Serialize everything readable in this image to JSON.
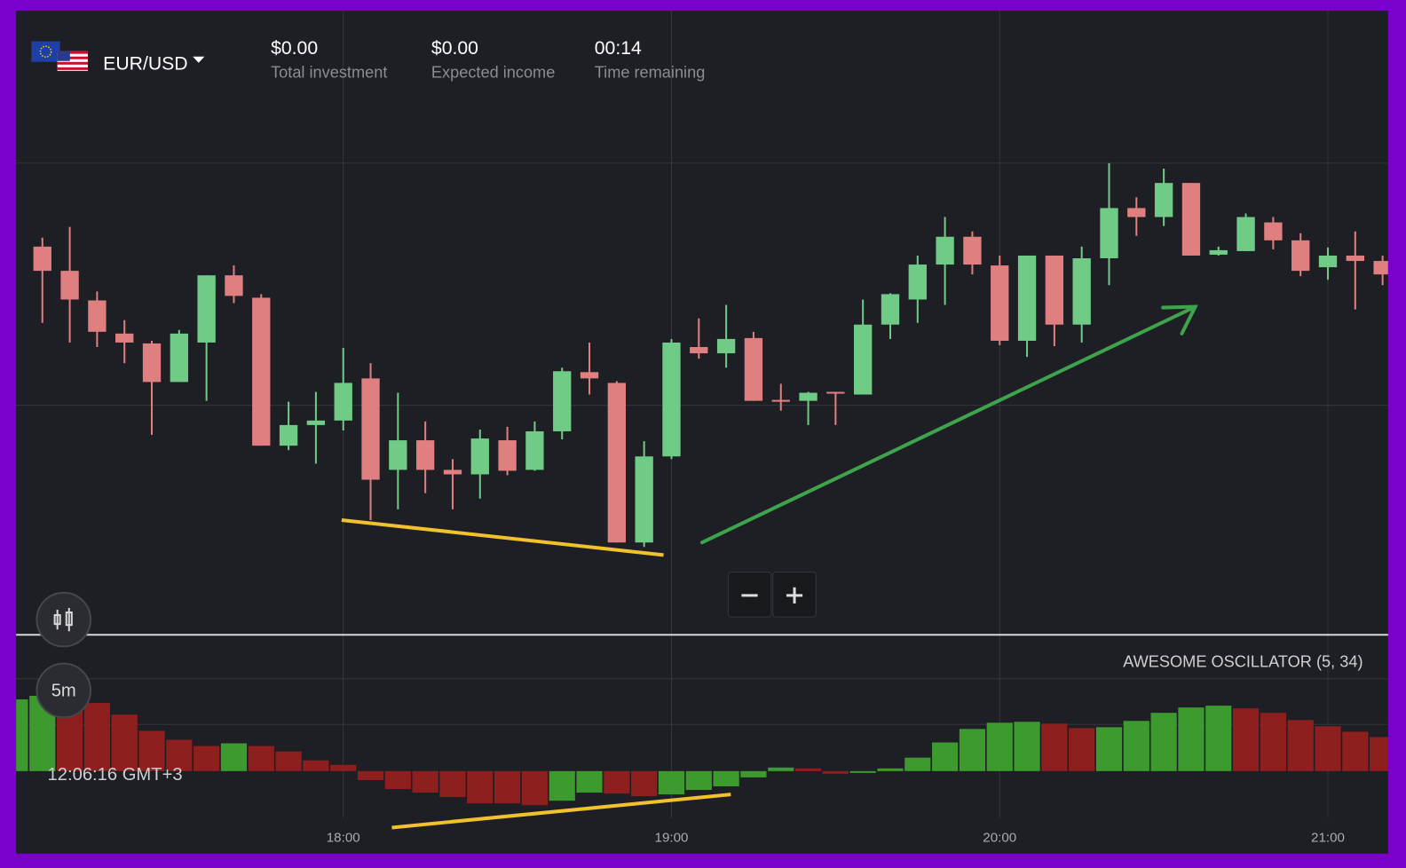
{
  "header": {
    "pair": "EUR/USD",
    "stats": [
      {
        "value": "$0.00",
        "label": "Total investment"
      },
      {
        "value": "$0.00",
        "label": "Expected income"
      },
      {
        "value": "00:14",
        "label": "Time remaining"
      }
    ]
  },
  "controls": {
    "timeframe": "5m",
    "clock": "12:06:16 GMT+3"
  },
  "chart_data": [
    {
      "type": "candlestick",
      "x": [
        1025,
        1030,
        1035,
        1040,
        1045,
        1050,
        1055,
        1060,
        1065,
        1070,
        1075,
        1080,
        1085,
        1090,
        1095,
        1100,
        1105,
        1110,
        1115,
        1120,
        1125,
        1130,
        1135,
        1140,
        1145,
        1150,
        1155,
        1160,
        1165,
        1170,
        1175,
        1180,
        1185,
        1190,
        1195,
        1200,
        1205,
        1210,
        1215,
        1220,
        1225,
        1230,
        1235,
        1240,
        1245,
        1250,
        1255,
        1260,
        1265,
        1270
      ],
      "open": [
        425,
        398,
        365,
        328,
        317,
        274,
        318,
        393,
        368,
        203,
        226,
        231,
        278,
        176,
        209,
        176,
        171,
        209,
        176,
        219,
        285,
        273,
        95,
        191,
        313,
        306,
        323,
        254,
        253,
        263,
        260,
        338,
        366,
        405,
        436,
        404,
        320,
        415,
        338,
        412,
        468,
        458,
        496,
        416,
        420,
        452,
        432,
        402,
        415,
        409
      ],
      "high": [
        435,
        447,
        375,
        343,
        320,
        332,
        393,
        404,
        372,
        252,
        263,
        312,
        295,
        262,
        230,
        188,
        221,
        224,
        230,
        290,
        318,
        275,
        208,
        322,
        345,
        360,
        330,
        272,
        263,
        263,
        366,
        373,
        415,
        458,
        442,
        415,
        415,
        415,
        425,
        518,
        480,
        512,
        496,
        425,
        462,
        458,
        440,
        424,
        442,
        415
      ],
      "low": [
        340,
        318,
        313,
        295,
        215,
        274,
        253,
        362,
        203,
        198,
        183,
        220,
        120,
        132,
        150,
        132,
        144,
        170,
        175,
        210,
        260,
        95,
        90,
        188,
        300,
        290,
        253,
        242,
        226,
        226,
        260,
        322,
        340,
        360,
        394,
        315,
        302,
        314,
        318,
        382,
        437,
        448,
        415,
        415,
        420,
        422,
        392,
        388,
        355,
        382
      ],
      "close": [
        398,
        366,
        330,
        318,
        274,
        328,
        393,
        370,
        203,
        226,
        231,
        273,
        165,
        209,
        176,
        171,
        211,
        175,
        219,
        286,
        278,
        95,
        191,
        318,
        306,
        322,
        253,
        253,
        262,
        261,
        338,
        372,
        405,
        436,
        405,
        320,
        415,
        338,
        412,
        468,
        458,
        496,
        415,
        421,
        458,
        432,
        398,
        415,
        409,
        394
      ],
      "up_color": "#6fcb86",
      "down_color": "#e07f7f",
      "xlim": [
        1020.2,
        1271
      ],
      "ylim": [
        0,
        690
      ],
      "xticks": [
        {
          "value": 1080,
          "label": "18:00"
        },
        {
          "value": 1140,
          "label": "19:00"
        },
        {
          "value": 1200,
          "label": "20:00"
        },
        {
          "value": 1260,
          "label": "21:00"
        }
      ]
    },
    {
      "type": "bar",
      "title": "AWESOME OSCILLATOR (5, 34)",
      "x": [
        1020,
        1025,
        1030,
        1035,
        1040,
        1045,
        1050,
        1055,
        1060,
        1065,
        1070,
        1075,
        1080,
        1085,
        1090,
        1095,
        1100,
        1105,
        1110,
        1115,
        1120,
        1125,
        1130,
        1135,
        1140,
        1145,
        1150,
        1155,
        1160,
        1165,
        1170,
        1175,
        1180,
        1185,
        1190,
        1195,
        1200,
        1205,
        1210,
        1215,
        1220,
        1225,
        1230,
        1235,
        1240,
        1245,
        1250,
        1255,
        1260,
        1265,
        1270
      ],
      "values": [
        80,
        84,
        76,
        76,
        63,
        45,
        35,
        28,
        31,
        28,
        22,
        12,
        7,
        -10,
        -20,
        -24,
        -29,
        -36,
        -36,
        -38,
        -33,
        -24,
        -25,
        -28,
        -26,
        -21,
        -17,
        -7,
        4,
        3,
        -3,
        -2,
        3,
        15,
        32,
        47,
        54,
        55,
        53,
        48,
        49,
        56,
        65,
        71,
        73,
        70,
        65,
        57,
        50,
        44,
        38
      ],
      "up_color": "#3c9a2e",
      "down_color": "#8e1f1f",
      "ylim": [
        -50,
        148
      ]
    }
  ]
}
